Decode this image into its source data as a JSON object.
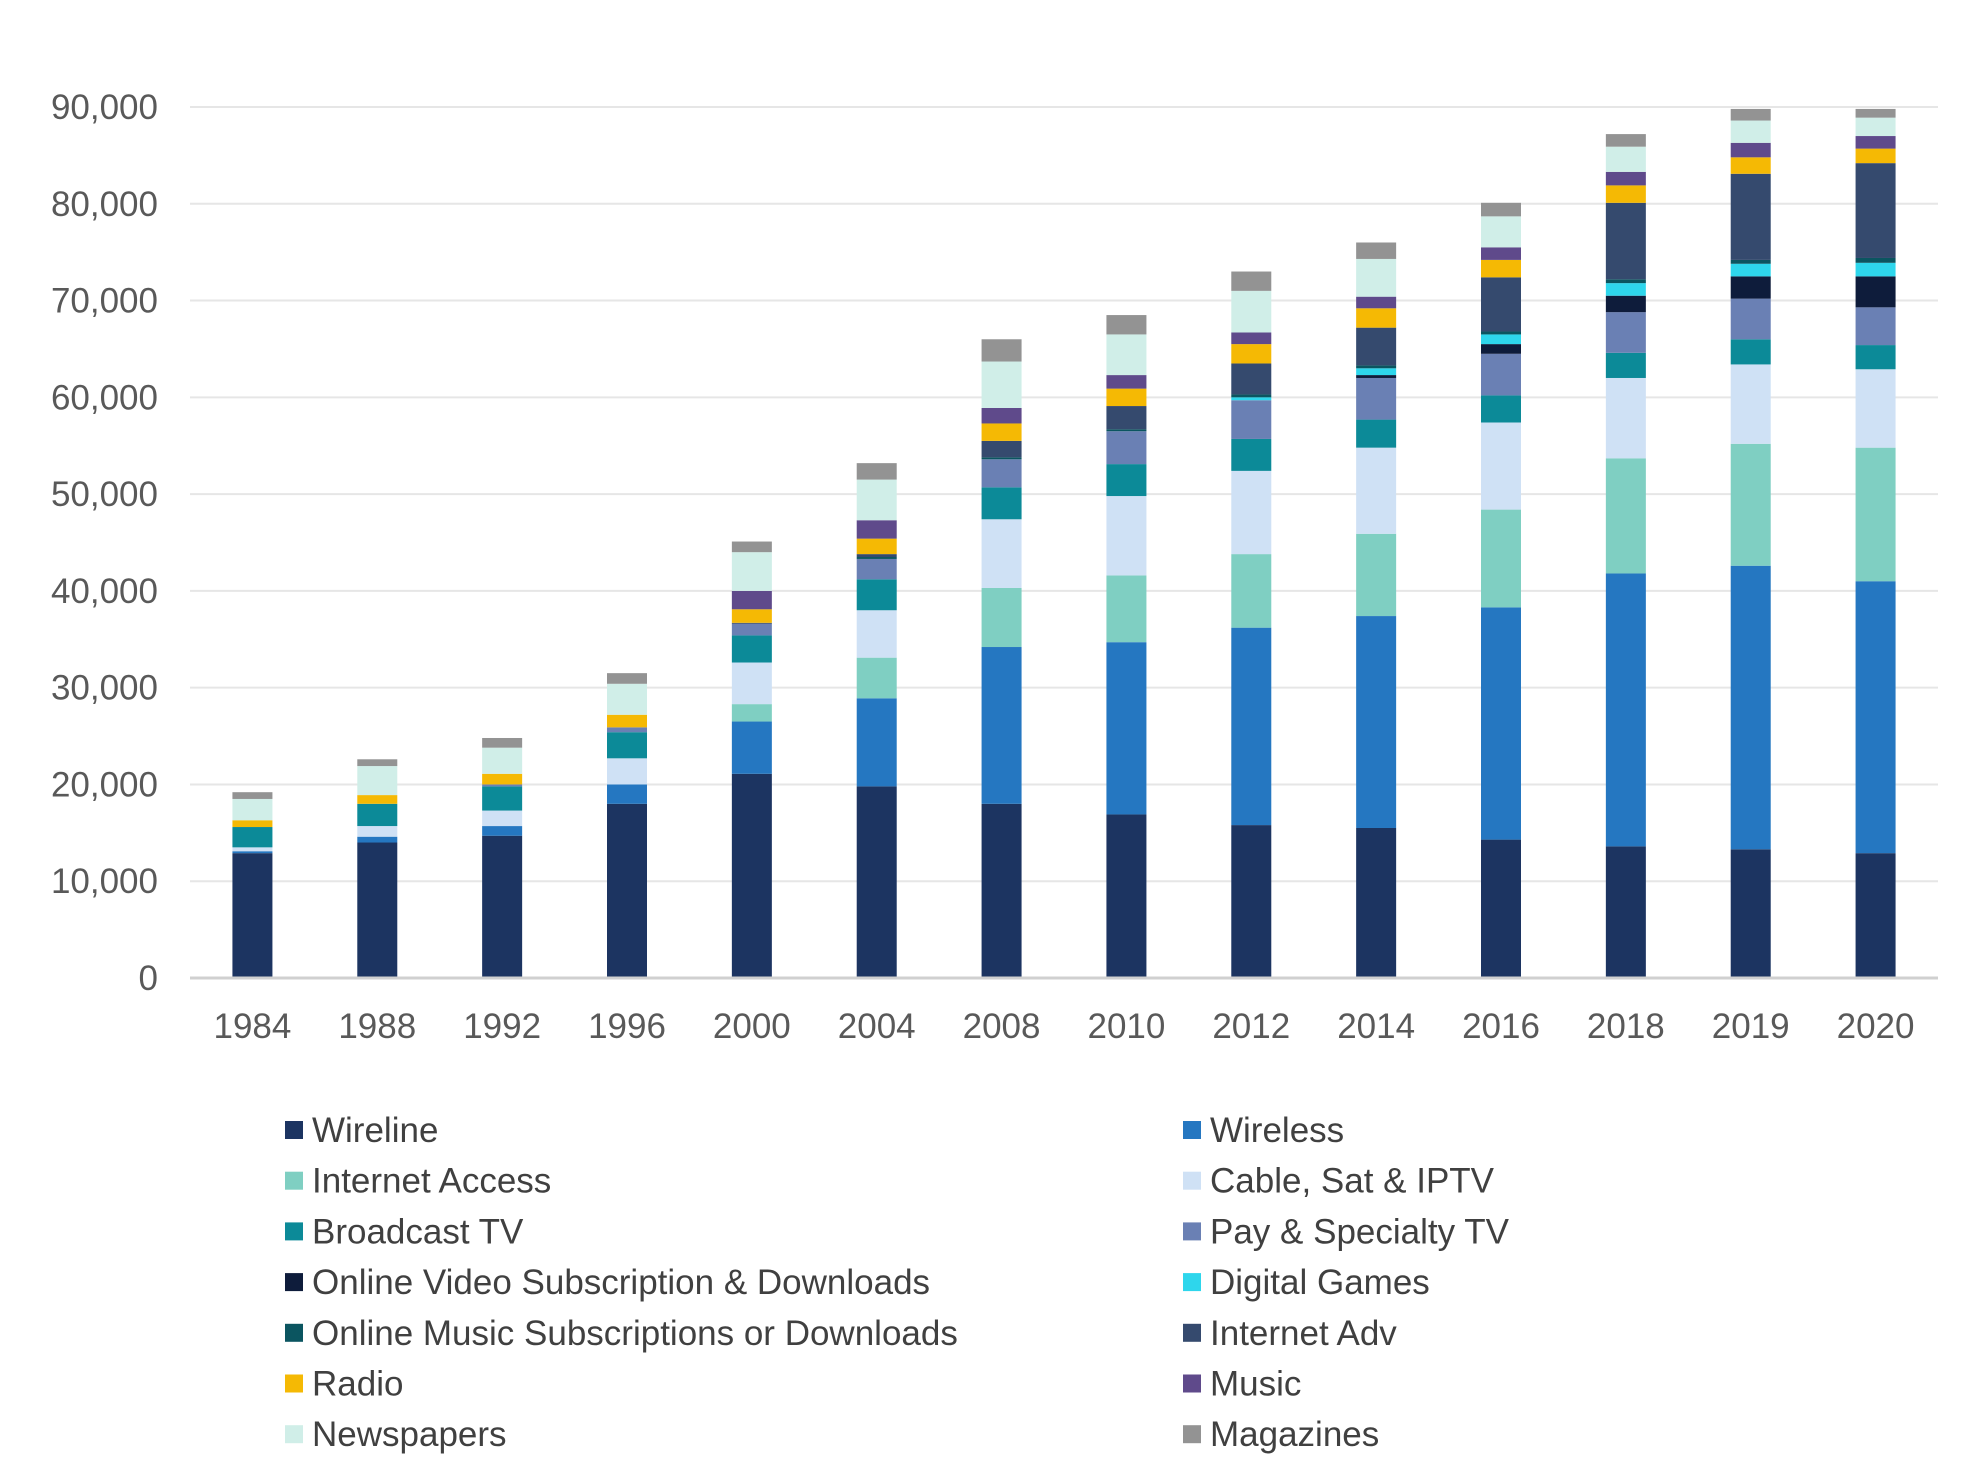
{
  "chart_data": {
    "type": "bar",
    "stacked": true,
    "title": "",
    "xlabel": "",
    "ylabel": "",
    "ylim": [
      0,
      90000
    ],
    "yticks": [
      0,
      10000,
      20000,
      30000,
      40000,
      50000,
      60000,
      70000,
      80000,
      90000
    ],
    "ytick_labels": [
      "0",
      "10,000",
      "20,000",
      "30,000",
      "40,000",
      "50,000",
      "60,000",
      "70,000",
      "80,000",
      "90,000"
    ],
    "grid": true,
    "legend_position": "bottom",
    "categories": [
      "1984",
      "1988",
      "1992",
      "1996",
      "2000",
      "2004",
      "2008",
      "2010",
      "2012",
      "2014",
      "2016",
      "2018",
      "2019",
      "2020"
    ],
    "series": [
      {
        "name": "Wireline",
        "color": "#1c3461",
        "values": [
          12900,
          14000,
          14700,
          18000,
          21100,
          19800,
          18000,
          16900,
          15800,
          15500,
          14300,
          13600,
          13300,
          12900
        ]
      },
      {
        "name": "Wireless",
        "color": "#2577c1",
        "values": [
          200,
          600,
          1000,
          2000,
          5400,
          9100,
          16200,
          17800,
          20400,
          21900,
          24000,
          28200,
          29300,
          28100
        ]
      },
      {
        "name": "Internet Access",
        "color": "#7fcfc2",
        "values": [
          0,
          0,
          0,
          0,
          1800,
          4200,
          6100,
          6900,
          7600,
          8500,
          10100,
          11900,
          12600,
          13800
        ]
      },
      {
        "name": "Cable, Sat & IPTV",
        "color": "#cfe1f5",
        "values": [
          400,
          1100,
          1600,
          2700,
          4300,
          4900,
          7100,
          8200,
          8600,
          8900,
          9000,
          8300,
          8200,
          8100
        ]
      },
      {
        "name": "Broadcast TV",
        "color": "#0c8a98",
        "values": [
          2100,
          2300,
          2500,
          2700,
          2800,
          3200,
          3300,
          3300,
          3300,
          2900,
          2800,
          2600,
          2600,
          2500
        ]
      },
      {
        "name": "Pay & Specialty TV",
        "color": "#6a80b4",
        "values": [
          0,
          0,
          200,
          500,
          1200,
          2100,
          2900,
          3400,
          4000,
          4300,
          4300,
          4200,
          4200,
          3900
        ]
      },
      {
        "name": "Online Video Subscription & Downloads",
        "color": "#0e1c3b",
        "values": [
          0,
          0,
          0,
          0,
          0,
          0,
          0,
          0,
          0,
          300,
          1000,
          1700,
          2300,
          3200
        ]
      },
      {
        "name": "Digital Games",
        "color": "#2ed6ec",
        "values": [
          0,
          0,
          0,
          0,
          0,
          0,
          0,
          0,
          300,
          700,
          1000,
          1300,
          1300,
          1400
        ]
      },
      {
        "name": "Online Music Subscriptions or Downloads",
        "color": "#0b5560",
        "values": [
          0,
          0,
          0,
          0,
          0,
          200,
          200,
          200,
          300,
          300,
          300,
          400,
          400,
          500
        ]
      },
      {
        "name": "Internet Adv",
        "color": "#354a6e",
        "values": [
          0,
          0,
          0,
          0,
          100,
          300,
          1700,
          2400,
          3200,
          3900,
          5600,
          7900,
          8900,
          9800
        ]
      },
      {
        "name": "Radio",
        "color": "#f5b904",
        "values": [
          700,
          900,
          1100,
          1300,
          1400,
          1600,
          1800,
          1800,
          2000,
          2000,
          1800,
          1800,
          1700,
          1500
        ]
      },
      {
        "name": "Music",
        "color": "#5f4a8b",
        "values": [
          0,
          0,
          0,
          0,
          1900,
          1900,
          1600,
          1400,
          1200,
          1200,
          1300,
          1400,
          1500,
          1300
        ]
      },
      {
        "name": "Newspapers",
        "color": "#d0eee8",
        "values": [
          2200,
          3000,
          2700,
          3200,
          4000,
          4200,
          4800,
          4200,
          4300,
          3900,
          3200,
          2600,
          2300,
          1900
        ]
      },
      {
        "name": "Magazines",
        "color": "#939393",
        "values": [
          700,
          700,
          1000,
          1100,
          1100,
          1700,
          2300,
          2000,
          2000,
          1700,
          1400,
          1300,
          1200,
          900
        ]
      }
    ]
  }
}
